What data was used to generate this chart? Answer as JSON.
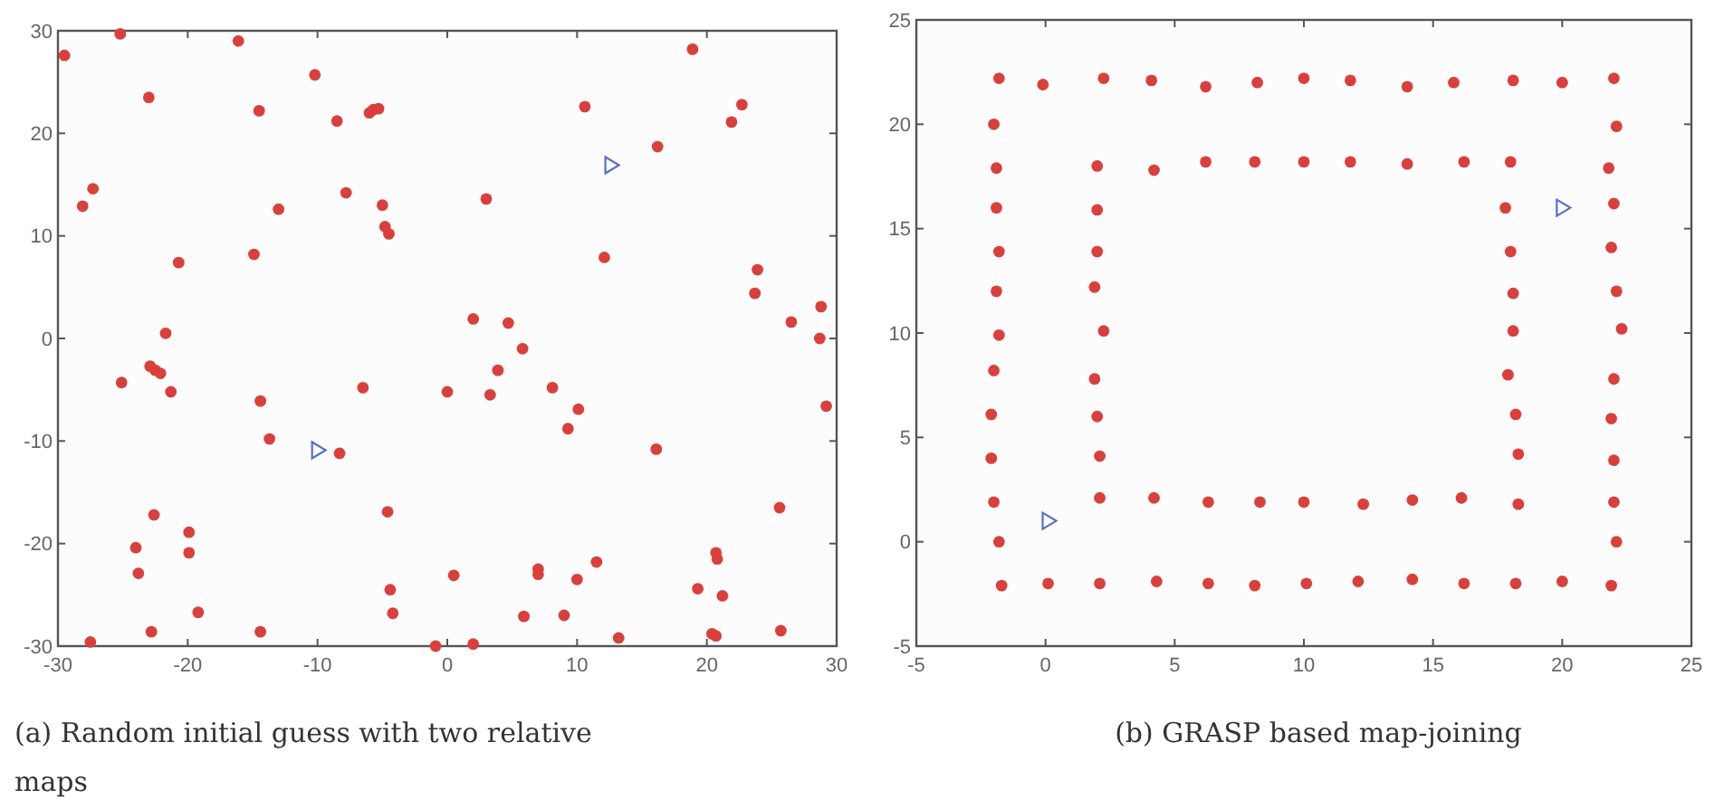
{
  "chart_data": [
    {
      "type": "scatter",
      "title": "(a) Random initial guess with two relative maps",
      "xlim": [
        -30,
        30
      ],
      "ylim": [
        -30,
        30
      ],
      "xticks": [
        -30,
        -20,
        -10,
        0,
        10,
        20,
        30
      ],
      "yticks": [
        -30,
        -20,
        -10,
        0,
        10,
        20,
        30
      ],
      "grid": false,
      "series": [
        {
          "color": "#d9403b",
          "marker": "circle",
          "x": [
            -29.5,
            -25.2,
            -16.1,
            -23,
            -14.5,
            -10.2,
            -8.5,
            -6,
            -5.7,
            -5.3,
            -28.1,
            -27.3,
            -20.7,
            -13,
            -14.9,
            -7.8,
            -5,
            -4.8,
            -4.5,
            -21.7,
            -25.1,
            -22.9,
            -22.5,
            -22.1,
            -21.3,
            -14.4,
            -13.7,
            -8.3,
            -6.5,
            0,
            -22.6,
            -19.9,
            -19.9,
            -24,
            -23.8,
            -19.2,
            -22.8,
            -14.4,
            -27.5,
            -4.6,
            -4.4,
            -4.2,
            -0.9,
            0.5,
            18.9,
            10.6,
            22.7,
            21.9,
            16.2,
            3,
            12.1,
            23.9,
            23.7,
            28.8,
            26.5,
            28.7,
            29.2,
            2,
            4.7,
            5.8,
            3.9,
            3.3,
            8.1,
            10.1,
            9.3,
            16.1,
            25.6,
            7,
            7,
            11.5,
            10,
            20.7,
            20.8,
            19.3,
            21.2,
            5.9,
            9,
            13.2,
            20.4,
            20.7,
            25.7,
            2
          ],
          "values": [
            27.6,
            29.7,
            29,
            23.5,
            22.2,
            25.7,
            21.2,
            22,
            22.3,
            22.4,
            12.9,
            14.6,
            7.4,
            12.6,
            8.2,
            14.2,
            13,
            10.9,
            10.2,
            0.5,
            -4.3,
            -2.7,
            -3.1,
            -3.4,
            -5.2,
            -6.1,
            -9.8,
            -11.2,
            -4.8,
            -5.2,
            -17.2,
            -18.9,
            -20.9,
            -20.4,
            -22.9,
            -26.7,
            -28.6,
            -28.6,
            -29.6,
            -16.9,
            -24.5,
            -26.8,
            -30,
            -23.1,
            28.2,
            22.6,
            22.8,
            21.1,
            18.7,
            13.6,
            7.9,
            6.7,
            4.4,
            3.1,
            1.6,
            0,
            -6.6,
            1.9,
            1.5,
            -1,
            -3.1,
            -5.5,
            -4.8,
            -6.9,
            -8.8,
            -10.8,
            -16.5,
            -22.5,
            -23,
            -21.8,
            -23.5,
            -20.9,
            -21.5,
            -24.4,
            -25.1,
            -27.1,
            -27,
            -29.2,
            -28.8,
            -29,
            -28.5,
            -29.8
          ]
        },
        {
          "color": "#5a6ec8",
          "marker": "triangle",
          "x": [
            -10,
            12.6
          ],
          "values": [
            -10.9,
            16.9
          ]
        }
      ]
    },
    {
      "type": "scatter",
      "title": "(b) GRASP based map-joining",
      "xlim": [
        -5,
        25
      ],
      "ylim": [
        -5,
        25
      ],
      "xticks": [
        -5,
        0,
        5,
        10,
        15,
        20,
        25
      ],
      "yticks": [
        -5,
        0,
        5,
        10,
        15,
        20,
        25
      ],
      "grid": false,
      "series": [
        {
          "color": "#d9403b",
          "marker": "circle",
          "x": [
            -1.8,
            -0.1,
            2.25,
            4.1,
            6.2,
            8.2,
            10,
            11.8,
            14,
            15.8,
            18.1,
            20,
            22,
            -2,
            -1.9,
            -1.9,
            -1.8,
            -1.9,
            -1.8,
            -2,
            -2.1,
            -2.1,
            -2,
            -1.8,
            -1.7,
            0.1,
            2.1,
            4.3,
            6.3,
            8.1,
            10.1,
            12.1,
            14.2,
            16.2,
            18.2,
            20,
            21.9,
            2,
            2,
            2,
            1.9,
            2.25,
            1.9,
            2,
            2.1,
            2.1,
            4.2,
            6.2,
            8.1,
            10,
            11.8,
            14,
            16.2,
            18,
            4.2,
            6.3,
            8.3,
            10,
            12.3,
            14.2,
            16.1,
            17.8,
            18,
            18.1,
            18.1,
            17.9,
            18.2,
            18.3,
            18.3,
            22.1,
            21.8,
            22,
            21.9,
            22.1,
            22.3,
            22,
            21.9,
            22,
            22,
            22.1
          ],
          "values": [
            22.2,
            21.9,
            22.2,
            22.1,
            21.8,
            22,
            22.2,
            22.1,
            21.8,
            22,
            22.1,
            22,
            22.2,
            20,
            17.9,
            16,
            13.9,
            12,
            9.9,
            8.2,
            6.1,
            4,
            1.9,
            0,
            -2.1,
            -2,
            -2,
            -1.9,
            -2,
            -2.1,
            -2,
            -1.9,
            -1.8,
            -2,
            -2,
            -1.9,
            -2.1,
            18,
            15.9,
            13.9,
            12.2,
            10.1,
            7.8,
            6,
            4.1,
            2.1,
            17.8,
            18.2,
            18.2,
            18.2,
            18.2,
            18.1,
            18.2,
            18.2,
            2.1,
            1.9,
            1.9,
            1.9,
            1.8,
            2,
            2.1,
            16,
            13.9,
            11.9,
            10.1,
            8,
            6.1,
            4.2,
            1.8,
            19.9,
            17.9,
            16.2,
            14.1,
            12,
            10.2,
            7.8,
            5.9,
            3.9,
            1.9,
            0
          ]
        },
        {
          "color": "#5a6ec8",
          "marker": "triangle",
          "x": [
            0.1,
            20
          ],
          "values": [
            1,
            16
          ]
        }
      ]
    }
  ]
}
